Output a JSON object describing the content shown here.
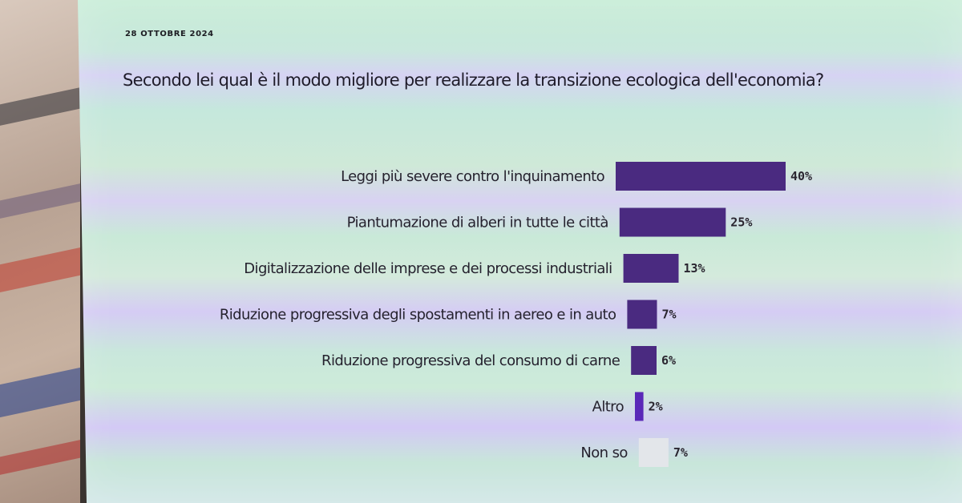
{
  "date": "28 OTTOBRE 2024",
  "chart_data": {
    "type": "bar",
    "orientation": "horizontal",
    "title": "Secondo lei qual è il modo migliore per realizzare la transizione ecologica dell'economia?",
    "categories": [
      "Leggi più severe contro l'inquinamento",
      "Piantumazione di alberi in tutte le città",
      "Digitalizzazione delle imprese e dei processi industriali",
      "Riduzione progressiva degli spostamenti in aereo e in auto",
      "Riduzione progressiva del consumo di carne",
      "Altro",
      "Non so"
    ],
    "values": [
      40,
      25,
      13,
      7,
      6,
      2,
      7
    ],
    "value_labels": [
      "40%",
      "25%",
      "13%",
      "7%",
      "6%",
      "2%",
      "7%"
    ],
    "bar_colors": [
      "#4a2a80",
      "#4a2a80",
      "#4a2a80",
      "#4a2a80",
      "#4a2a80",
      "#5a28b8",
      "#e3e6ea"
    ],
    "xlim": [
      0,
      40
    ],
    "grid": false,
    "legend": "none"
  }
}
